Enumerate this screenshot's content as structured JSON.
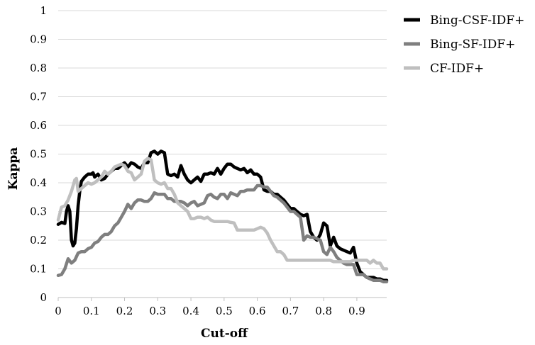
{
  "chart_data": {
    "type": "line",
    "xlabel": "Cut-off",
    "ylabel": "Kappa",
    "xlim": [
      0,
      0.99
    ],
    "ylim": [
      0,
      1
    ],
    "xticks": [
      "0",
      "0.1",
      "0.2",
      "0.3",
      "0.4",
      "0.5",
      "0.6",
      "0.7",
      "0.8",
      "0.9"
    ],
    "xtick_values": [
      0,
      0.1,
      0.2,
      0.3,
      0.4,
      0.5,
      0.6,
      0.7,
      0.8,
      0.9
    ],
    "yticks": [
      "0",
      "0.1",
      "0.2",
      "0.3",
      "0.4",
      "0.5",
      "0.6",
      "0.7",
      "0.8",
      "0.9",
      "1"
    ],
    "ytick_values": [
      0,
      0.1,
      0.2,
      0.3,
      0.4,
      0.5,
      0.6,
      0.7,
      0.8,
      0.9,
      1
    ],
    "grid": "horizontal",
    "legend_position": "top-right",
    "series": [
      {
        "name": "Bing-CSF-IDF+",
        "color": "#000000",
        "points": [
          [
            0,
            0.255
          ],
          [
            0.01,
            0.262
          ],
          [
            0.02,
            0.258
          ],
          [
            0.025,
            0.3
          ],
          [
            0.03,
            0.32
          ],
          [
            0.035,
            0.3
          ],
          [
            0.04,
            0.2
          ],
          [
            0.045,
            0.18
          ],
          [
            0.05,
            0.19
          ],
          [
            0.055,
            0.24
          ],
          [
            0.06,
            0.32
          ],
          [
            0.065,
            0.37
          ],
          [
            0.07,
            0.405
          ],
          [
            0.08,
            0.42
          ],
          [
            0.09,
            0.43
          ],
          [
            0.1,
            0.43
          ],
          [
            0.105,
            0.435
          ],
          [
            0.11,
            0.42
          ],
          [
            0.12,
            0.43
          ],
          [
            0.13,
            0.41
          ],
          [
            0.14,
            0.415
          ],
          [
            0.15,
            0.43
          ],
          [
            0.16,
            0.44
          ],
          [
            0.17,
            0.45
          ],
          [
            0.18,
            0.45
          ],
          [
            0.19,
            0.46
          ],
          [
            0.2,
            0.47
          ],
          [
            0.21,
            0.455
          ],
          [
            0.22,
            0.47
          ],
          [
            0.23,
            0.465
          ],
          [
            0.24,
            0.455
          ],
          [
            0.25,
            0.45
          ],
          [
            0.26,
            0.47
          ],
          [
            0.27,
            0.47
          ],
          [
            0.28,
            0.505
          ],
          [
            0.29,
            0.51
          ],
          [
            0.3,
            0.5
          ],
          [
            0.31,
            0.51
          ],
          [
            0.32,
            0.505
          ],
          [
            0.33,
            0.43
          ],
          [
            0.34,
            0.425
          ],
          [
            0.35,
            0.43
          ],
          [
            0.36,
            0.42
          ],
          [
            0.37,
            0.46
          ],
          [
            0.38,
            0.43
          ],
          [
            0.39,
            0.41
          ],
          [
            0.4,
            0.4
          ],
          [
            0.41,
            0.41
          ],
          [
            0.42,
            0.42
          ],
          [
            0.43,
            0.405
          ],
          [
            0.44,
            0.43
          ],
          [
            0.45,
            0.43
          ],
          [
            0.46,
            0.435
          ],
          [
            0.47,
            0.43
          ],
          [
            0.48,
            0.45
          ],
          [
            0.49,
            0.43
          ],
          [
            0.5,
            0.45
          ],
          [
            0.51,
            0.465
          ],
          [
            0.52,
            0.465
          ],
          [
            0.53,
            0.455
          ],
          [
            0.54,
            0.45
          ],
          [
            0.55,
            0.445
          ],
          [
            0.56,
            0.45
          ],
          [
            0.57,
            0.435
          ],
          [
            0.58,
            0.445
          ],
          [
            0.59,
            0.43
          ],
          [
            0.6,
            0.43
          ],
          [
            0.61,
            0.42
          ],
          [
            0.62,
            0.375
          ],
          [
            0.63,
            0.37
          ],
          [
            0.64,
            0.37
          ],
          [
            0.65,
            0.36
          ],
          [
            0.66,
            0.36
          ],
          [
            0.67,
            0.35
          ],
          [
            0.68,
            0.34
          ],
          [
            0.69,
            0.325
          ],
          [
            0.7,
            0.31
          ],
          [
            0.71,
            0.31
          ],
          [
            0.72,
            0.3
          ],
          [
            0.73,
            0.29
          ],
          [
            0.74,
            0.285
          ],
          [
            0.75,
            0.29
          ],
          [
            0.76,
            0.23
          ],
          [
            0.77,
            0.21
          ],
          [
            0.78,
            0.2
          ],
          [
            0.79,
            0.22
          ],
          [
            0.8,
            0.26
          ],
          [
            0.81,
            0.25
          ],
          [
            0.82,
            0.18
          ],
          [
            0.83,
            0.21
          ],
          [
            0.84,
            0.18
          ],
          [
            0.85,
            0.17
          ],
          [
            0.86,
            0.165
          ],
          [
            0.87,
            0.16
          ],
          [
            0.88,
            0.155
          ],
          [
            0.89,
            0.175
          ],
          [
            0.9,
            0.12
          ],
          [
            0.91,
            0.09
          ],
          [
            0.92,
            0.08
          ],
          [
            0.93,
            0.07
          ],
          [
            0.94,
            0.07
          ],
          [
            0.95,
            0.07
          ],
          [
            0.96,
            0.065
          ],
          [
            0.97,
            0.065
          ],
          [
            0.98,
            0.06
          ],
          [
            0.99,
            0.06
          ]
        ]
      },
      {
        "name": "Bing-SF-IDF+",
        "color": "#7f7f7f",
        "points": [
          [
            0,
            0.077
          ],
          [
            0.01,
            0.08
          ],
          [
            0.02,
            0.1
          ],
          [
            0.03,
            0.135
          ],
          [
            0.04,
            0.12
          ],
          [
            0.05,
            0.13
          ],
          [
            0.06,
            0.155
          ],
          [
            0.07,
            0.16
          ],
          [
            0.08,
            0.16
          ],
          [
            0.09,
            0.17
          ],
          [
            0.1,
            0.175
          ],
          [
            0.11,
            0.19
          ],
          [
            0.12,
            0.195
          ],
          [
            0.13,
            0.21
          ],
          [
            0.14,
            0.22
          ],
          [
            0.15,
            0.22
          ],
          [
            0.16,
            0.23
          ],
          [
            0.17,
            0.25
          ],
          [
            0.18,
            0.26
          ],
          [
            0.19,
            0.28
          ],
          [
            0.2,
            0.3
          ],
          [
            0.21,
            0.325
          ],
          [
            0.22,
            0.31
          ],
          [
            0.23,
            0.33
          ],
          [
            0.24,
            0.34
          ],
          [
            0.25,
            0.34
          ],
          [
            0.26,
            0.335
          ],
          [
            0.27,
            0.335
          ],
          [
            0.28,
            0.345
          ],
          [
            0.29,
            0.365
          ],
          [
            0.3,
            0.36
          ],
          [
            0.31,
            0.36
          ],
          [
            0.32,
            0.36
          ],
          [
            0.33,
            0.345
          ],
          [
            0.34,
            0.345
          ],
          [
            0.35,
            0.335
          ],
          [
            0.36,
            0.335
          ],
          [
            0.37,
            0.335
          ],
          [
            0.38,
            0.33
          ],
          [
            0.39,
            0.32
          ],
          [
            0.4,
            0.33
          ],
          [
            0.41,
            0.335
          ],
          [
            0.42,
            0.32
          ],
          [
            0.43,
            0.325
          ],
          [
            0.44,
            0.33
          ],
          [
            0.45,
            0.355
          ],
          [
            0.46,
            0.36
          ],
          [
            0.47,
            0.35
          ],
          [
            0.48,
            0.345
          ],
          [
            0.49,
            0.36
          ],
          [
            0.5,
            0.36
          ],
          [
            0.51,
            0.345
          ],
          [
            0.52,
            0.365
          ],
          [
            0.53,
            0.36
          ],
          [
            0.54,
            0.355
          ],
          [
            0.55,
            0.37
          ],
          [
            0.56,
            0.37
          ],
          [
            0.57,
            0.375
          ],
          [
            0.58,
            0.375
          ],
          [
            0.59,
            0.375
          ],
          [
            0.6,
            0.39
          ],
          [
            0.61,
            0.39
          ],
          [
            0.62,
            0.385
          ],
          [
            0.63,
            0.385
          ],
          [
            0.64,
            0.37
          ],
          [
            0.65,
            0.355
          ],
          [
            0.66,
            0.35
          ],
          [
            0.67,
            0.34
          ],
          [
            0.68,
            0.33
          ],
          [
            0.69,
            0.315
          ],
          [
            0.7,
            0.3
          ],
          [
            0.71,
            0.3
          ],
          [
            0.72,
            0.29
          ],
          [
            0.73,
            0.28
          ],
          [
            0.74,
            0.2
          ],
          [
            0.75,
            0.215
          ],
          [
            0.76,
            0.21
          ],
          [
            0.77,
            0.21
          ],
          [
            0.78,
            0.205
          ],
          [
            0.79,
            0.2
          ],
          [
            0.8,
            0.16
          ],
          [
            0.81,
            0.15
          ],
          [
            0.82,
            0.175
          ],
          [
            0.83,
            0.16
          ],
          [
            0.84,
            0.14
          ],
          [
            0.85,
            0.13
          ],
          [
            0.86,
            0.12
          ],
          [
            0.87,
            0.115
          ],
          [
            0.88,
            0.115
          ],
          [
            0.89,
            0.115
          ],
          [
            0.9,
            0.08
          ],
          [
            0.91,
            0.08
          ],
          [
            0.92,
            0.08
          ],
          [
            0.93,
            0.07
          ],
          [
            0.94,
            0.065
          ],
          [
            0.95,
            0.06
          ],
          [
            0.96,
            0.06
          ],
          [
            0.97,
            0.06
          ],
          [
            0.98,
            0.055
          ],
          [
            0.99,
            0.055
          ]
        ]
      },
      {
        "name": "CF-IDF+",
        "color": "#bfbfbf",
        "points": [
          [
            0,
            0.27
          ],
          [
            0.01,
            0.315
          ],
          [
            0.02,
            0.32
          ],
          [
            0.03,
            0.34
          ],
          [
            0.04,
            0.37
          ],
          [
            0.05,
            0.41
          ],
          [
            0.055,
            0.415
          ],
          [
            0.06,
            0.37
          ],
          [
            0.07,
            0.38
          ],
          [
            0.08,
            0.39
          ],
          [
            0.09,
            0.4
          ],
          [
            0.1,
            0.395
          ],
          [
            0.11,
            0.4
          ],
          [
            0.12,
            0.41
          ],
          [
            0.13,
            0.42
          ],
          [
            0.14,
            0.44
          ],
          [
            0.15,
            0.43
          ],
          [
            0.16,
            0.44
          ],
          [
            0.17,
            0.455
          ],
          [
            0.18,
            0.46
          ],
          [
            0.19,
            0.465
          ],
          [
            0.2,
            0.46
          ],
          [
            0.21,
            0.44
          ],
          [
            0.22,
            0.435
          ],
          [
            0.23,
            0.41
          ],
          [
            0.24,
            0.42
          ],
          [
            0.25,
            0.43
          ],
          [
            0.26,
            0.475
          ],
          [
            0.27,
            0.485
          ],
          [
            0.28,
            0.48
          ],
          [
            0.29,
            0.41
          ],
          [
            0.3,
            0.4
          ],
          [
            0.31,
            0.395
          ],
          [
            0.32,
            0.4
          ],
          [
            0.33,
            0.38
          ],
          [
            0.34,
            0.38
          ],
          [
            0.35,
            0.36
          ],
          [
            0.36,
            0.33
          ],
          [
            0.37,
            0.32
          ],
          [
            0.38,
            0.31
          ],
          [
            0.39,
            0.3
          ],
          [
            0.4,
            0.275
          ],
          [
            0.41,
            0.275
          ],
          [
            0.42,
            0.28
          ],
          [
            0.43,
            0.28
          ],
          [
            0.44,
            0.275
          ],
          [
            0.45,
            0.28
          ],
          [
            0.46,
            0.27
          ],
          [
            0.47,
            0.265
          ],
          [
            0.48,
            0.265
          ],
          [
            0.49,
            0.265
          ],
          [
            0.5,
            0.265
          ],
          [
            0.51,
            0.265
          ],
          [
            0.52,
            0.262
          ],
          [
            0.53,
            0.26
          ],
          [
            0.54,
            0.235
          ],
          [
            0.55,
            0.235
          ],
          [
            0.56,
            0.235
          ],
          [
            0.57,
            0.235
          ],
          [
            0.58,
            0.235
          ],
          [
            0.59,
            0.235
          ],
          [
            0.6,
            0.24
          ],
          [
            0.61,
            0.245
          ],
          [
            0.62,
            0.24
          ],
          [
            0.63,
            0.225
          ],
          [
            0.64,
            0.2
          ],
          [
            0.65,
            0.18
          ],
          [
            0.66,
            0.16
          ],
          [
            0.67,
            0.16
          ],
          [
            0.68,
            0.15
          ],
          [
            0.69,
            0.13
          ],
          [
            0.7,
            0.13
          ],
          [
            0.71,
            0.13
          ],
          [
            0.72,
            0.13
          ],
          [
            0.73,
            0.13
          ],
          [
            0.74,
            0.13
          ],
          [
            0.75,
            0.13
          ],
          [
            0.76,
            0.13
          ],
          [
            0.77,
            0.13
          ],
          [
            0.78,
            0.13
          ],
          [
            0.79,
            0.13
          ],
          [
            0.8,
            0.13
          ],
          [
            0.81,
            0.13
          ],
          [
            0.82,
            0.13
          ],
          [
            0.83,
            0.125
          ],
          [
            0.84,
            0.125
          ],
          [
            0.85,
            0.125
          ],
          [
            0.86,
            0.125
          ],
          [
            0.87,
            0.125
          ],
          [
            0.88,
            0.125
          ],
          [
            0.89,
            0.13
          ],
          [
            0.9,
            0.13
          ],
          [
            0.91,
            0.13
          ],
          [
            0.92,
            0.13
          ],
          [
            0.93,
            0.13
          ],
          [
            0.94,
            0.12
          ],
          [
            0.95,
            0.13
          ],
          [
            0.96,
            0.12
          ],
          [
            0.97,
            0.12
          ],
          [
            0.98,
            0.1
          ],
          [
            0.99,
            0.1
          ]
        ]
      }
    ]
  }
}
